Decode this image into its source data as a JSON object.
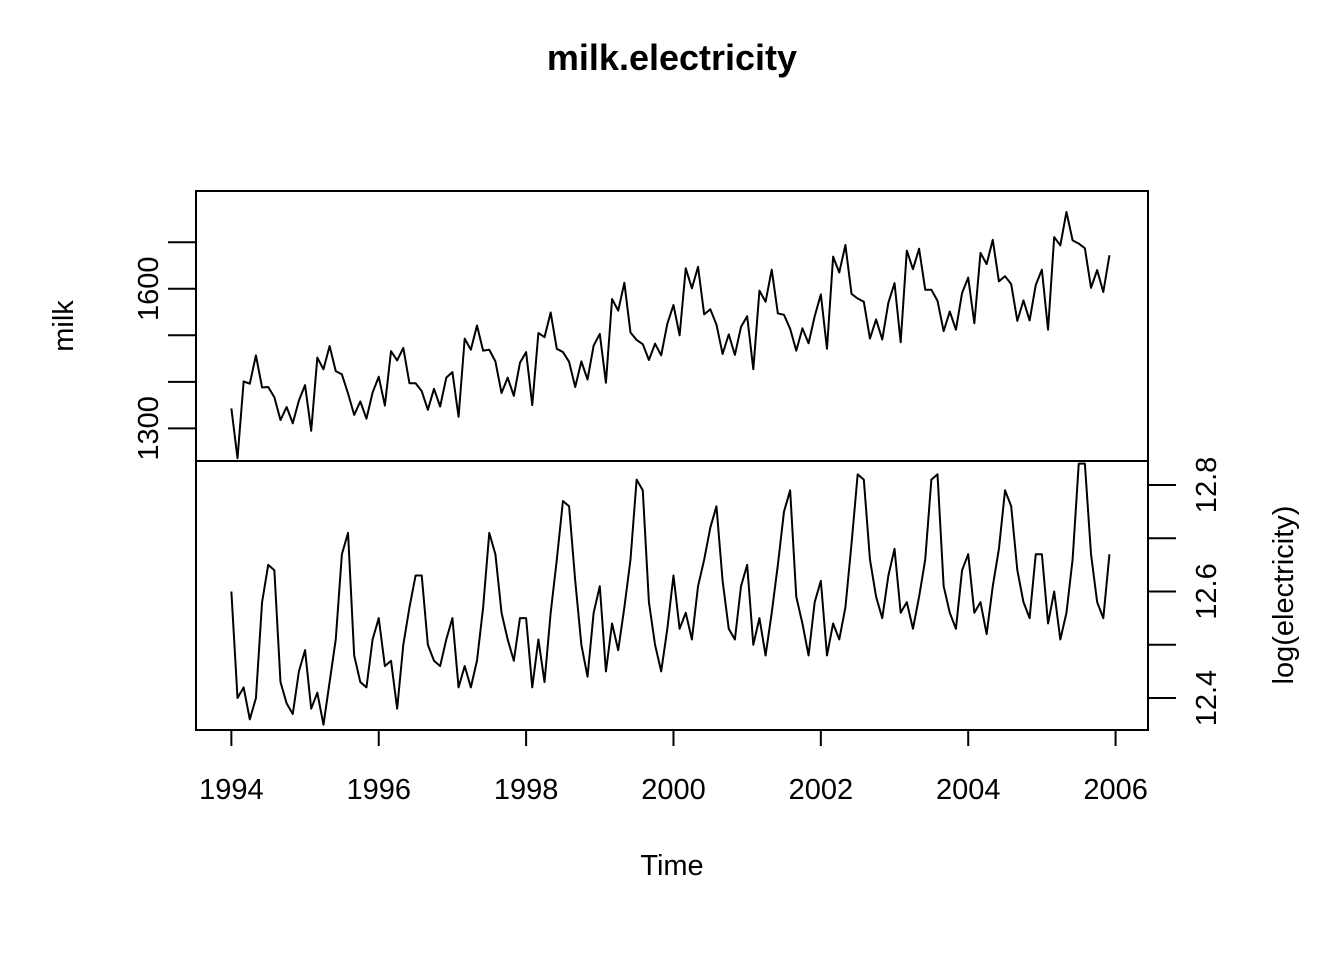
{
  "chart_data": {
    "type": "line",
    "title": "milk.electricity",
    "xlabel": "Time",
    "frequency": 12,
    "start": 1994,
    "xlim": [
      1993.52,
      2006.44
    ],
    "x_ticks": [
      1994,
      1996,
      1998,
      2000,
      2002,
      2004,
      2006
    ],
    "grid": false,
    "legend": "none",
    "line_color": "#000000",
    "panels": [
      {
        "name": "milk",
        "ylabel": "milk",
        "y_axis_side": "left",
        "ylim": [
          1230,
          1810
        ],
        "y_ticks": [
          1300,
          1400,
          1500,
          1600,
          1700
        ],
        "y_tick_labels": [
          "1300",
          "",
          "",
          "1600",
          ""
        ],
        "values": [
          1343,
          1236,
          1401,
          1396,
          1457,
          1388,
          1389,
          1367,
          1318,
          1346,
          1311,
          1360,
          1393,
          1295,
          1452,
          1427,
          1477,
          1423,
          1416,
          1375,
          1329,
          1358,
          1321,
          1377,
          1411,
          1349,
          1466,
          1446,
          1473,
          1397,
          1397,
          1380,
          1340,
          1385,
          1347,
          1409,
          1421,
          1325,
          1493,
          1469,
          1521,
          1467,
          1469,
          1444,
          1376,
          1409,
          1370,
          1441,
          1464,
          1350,
          1505,
          1496,
          1549,
          1471,
          1464,
          1443,
          1389,
          1444,
          1405,
          1478,
          1503,
          1398,
          1578,
          1553,
          1613,
          1506,
          1490,
          1481,
          1447,
          1482,
          1457,
          1525,
          1565,
          1500,
          1644,
          1601,
          1647,
          1545,
          1556,
          1523,
          1460,
          1502,
          1458,
          1518,
          1541,
          1427,
          1596,
          1572,
          1641,
          1547,
          1544,
          1514,
          1467,
          1515,
          1483,
          1541,
          1588,
          1471,
          1669,
          1635,
          1694,
          1589,
          1579,
          1572,
          1493,
          1534,
          1491,
          1570,
          1612,
          1485,
          1682,
          1642,
          1686,
          1598,
          1598,
          1574,
          1509,
          1551,
          1512,
          1591,
          1624,
          1526,
          1677,
          1653,
          1705,
          1616,
          1627,
          1610,
          1531,
          1575,
          1532,
          1608,
          1641,
          1512,
          1711,
          1693,
          1765,
          1704,
          1697,
          1687,
          1602,
          1640,
          1593,
          1672
        ]
      },
      {
        "name": "log(electricity)",
        "ylabel": "log(electricity)",
        "y_axis_side": "right",
        "ylim": [
          12.34,
          12.845
        ],
        "y_ticks": [
          12.4,
          12.5,
          12.6,
          12.7,
          12.8,
          12.9
        ],
        "y_tick_labels": [
          "12.4",
          "",
          "12.6",
          "",
          "12.8",
          ""
        ],
        "values": [
          12.6,
          12.4,
          12.42,
          12.36,
          12.4,
          12.58,
          12.65,
          12.64,
          12.43,
          12.39,
          12.37,
          12.45,
          12.49,
          12.38,
          12.41,
          12.35,
          12.43,
          12.51,
          12.67,
          12.71,
          12.48,
          12.43,
          12.42,
          12.51,
          12.55,
          12.46,
          12.47,
          12.38,
          12.5,
          12.57,
          12.63,
          12.63,
          12.5,
          12.47,
          12.46,
          12.51,
          12.55,
          12.42,
          12.46,
          12.42,
          12.47,
          12.57,
          12.71,
          12.67,
          12.56,
          12.51,
          12.47,
          12.55,
          12.55,
          12.42,
          12.51,
          12.43,
          12.56,
          12.66,
          12.77,
          12.76,
          12.62,
          12.5,
          12.44,
          12.56,
          12.61,
          12.45,
          12.54,
          12.49,
          12.57,
          12.66,
          12.81,
          12.79,
          12.58,
          12.5,
          12.45,
          12.53,
          12.63,
          12.53,
          12.56,
          12.51,
          12.61,
          12.66,
          12.72,
          12.76,
          12.62,
          12.53,
          12.51,
          12.61,
          12.65,
          12.5,
          12.55,
          12.48,
          12.56,
          12.65,
          12.75,
          12.79,
          12.59,
          12.54,
          12.48,
          12.58,
          12.62,
          12.48,
          12.54,
          12.51,
          12.57,
          12.69,
          12.82,
          12.81,
          12.66,
          12.59,
          12.55,
          12.63,
          12.68,
          12.56,
          12.58,
          12.53,
          12.59,
          12.66,
          12.81,
          12.82,
          12.61,
          12.56,
          12.53,
          12.64,
          12.67,
          12.56,
          12.58,
          12.52,
          12.61,
          12.68,
          12.79,
          12.76,
          12.64,
          12.58,
          12.55,
          12.67,
          12.67,
          12.54,
          12.6,
          12.51,
          12.56,
          12.66,
          12.84,
          12.84,
          12.67,
          12.58,
          12.55,
          12.67
        ]
      }
    ]
  }
}
